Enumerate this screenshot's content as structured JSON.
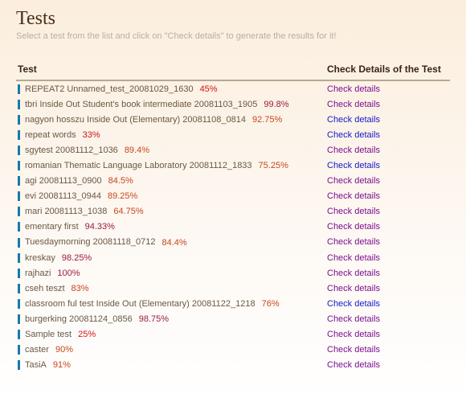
{
  "header": {
    "title": "Tests",
    "subtitle": "Select a test from the list and click on \"Check details\" to generate the results for it!"
  },
  "columns": {
    "test": "Test",
    "details": "Check Details of the Test"
  },
  "link_label": "Check details",
  "rows": [
    {
      "name": "REPEAT2 Unnamed_test_20081029_1630",
      "pct": "45%",
      "pct_color": "red",
      "link_color": "purple"
    },
    {
      "name": "tbri Inside Out Student's book intermediate 20081103_1905",
      "pct": "99.8%",
      "pct_color": "wine",
      "link_color": "purple"
    },
    {
      "name": "nagyon hosszu Inside Out (Elementary) 20081108_0814",
      "pct": "92.75%",
      "pct_color": "amber",
      "link_color": "blue"
    },
    {
      "name": "repeat words",
      "pct": "33%",
      "pct_color": "red",
      "link_color": "blue"
    },
    {
      "name": "sgytest 20081112_1036",
      "pct": "89.4%",
      "pct_color": "amber",
      "link_color": "purple"
    },
    {
      "name": "romanian Thematic Language Laboratory 20081112_1833",
      "pct": "75.25%",
      "pct_color": "amber",
      "link_color": "blue"
    },
    {
      "name": "agi 20081113_0900",
      "pct": "84.5%",
      "pct_color": "amber",
      "link_color": "purple"
    },
    {
      "name": "evi 20081113_0944",
      "pct": "89.25%",
      "pct_color": "amber",
      "link_color": "purple"
    },
    {
      "name": "mari 20081113_1038",
      "pct": "64.75%",
      "pct_color": "amber",
      "link_color": "purple"
    },
    {
      "name": "ementary first",
      "pct": "94.33%",
      "pct_color": "wine",
      "link_color": "purple"
    },
    {
      "name": "Tuesdaymorning 20081118_0712",
      "pct": "84.4%",
      "pct_color": "amber",
      "link_color": "purple"
    },
    {
      "name": "kreskay",
      "pct": "98.25%",
      "pct_color": "wine",
      "link_color": "purple"
    },
    {
      "name": "rajhazi",
      "pct": "100%",
      "pct_color": "wine",
      "link_color": "purple"
    },
    {
      "name": "cseh teszt",
      "pct": "83%",
      "pct_color": "amber",
      "link_color": "purple"
    },
    {
      "name": "classroom ful test Inside Out (Elementary) 20081122_1218",
      "pct": "76%",
      "pct_color": "amber",
      "link_color": "blue"
    },
    {
      "name": "burgerking 20081124_0856",
      "pct": "98.75%",
      "pct_color": "wine",
      "link_color": "purple"
    },
    {
      "name": "Sample test",
      "pct": "25%",
      "pct_color": "red",
      "link_color": "purple"
    },
    {
      "name": "caster",
      "pct": "90%",
      "pct_color": "amber",
      "link_color": "purple"
    },
    {
      "name": "TasiA",
      "pct": "91%",
      "pct_color": "amber",
      "link_color": "purple"
    }
  ]
}
